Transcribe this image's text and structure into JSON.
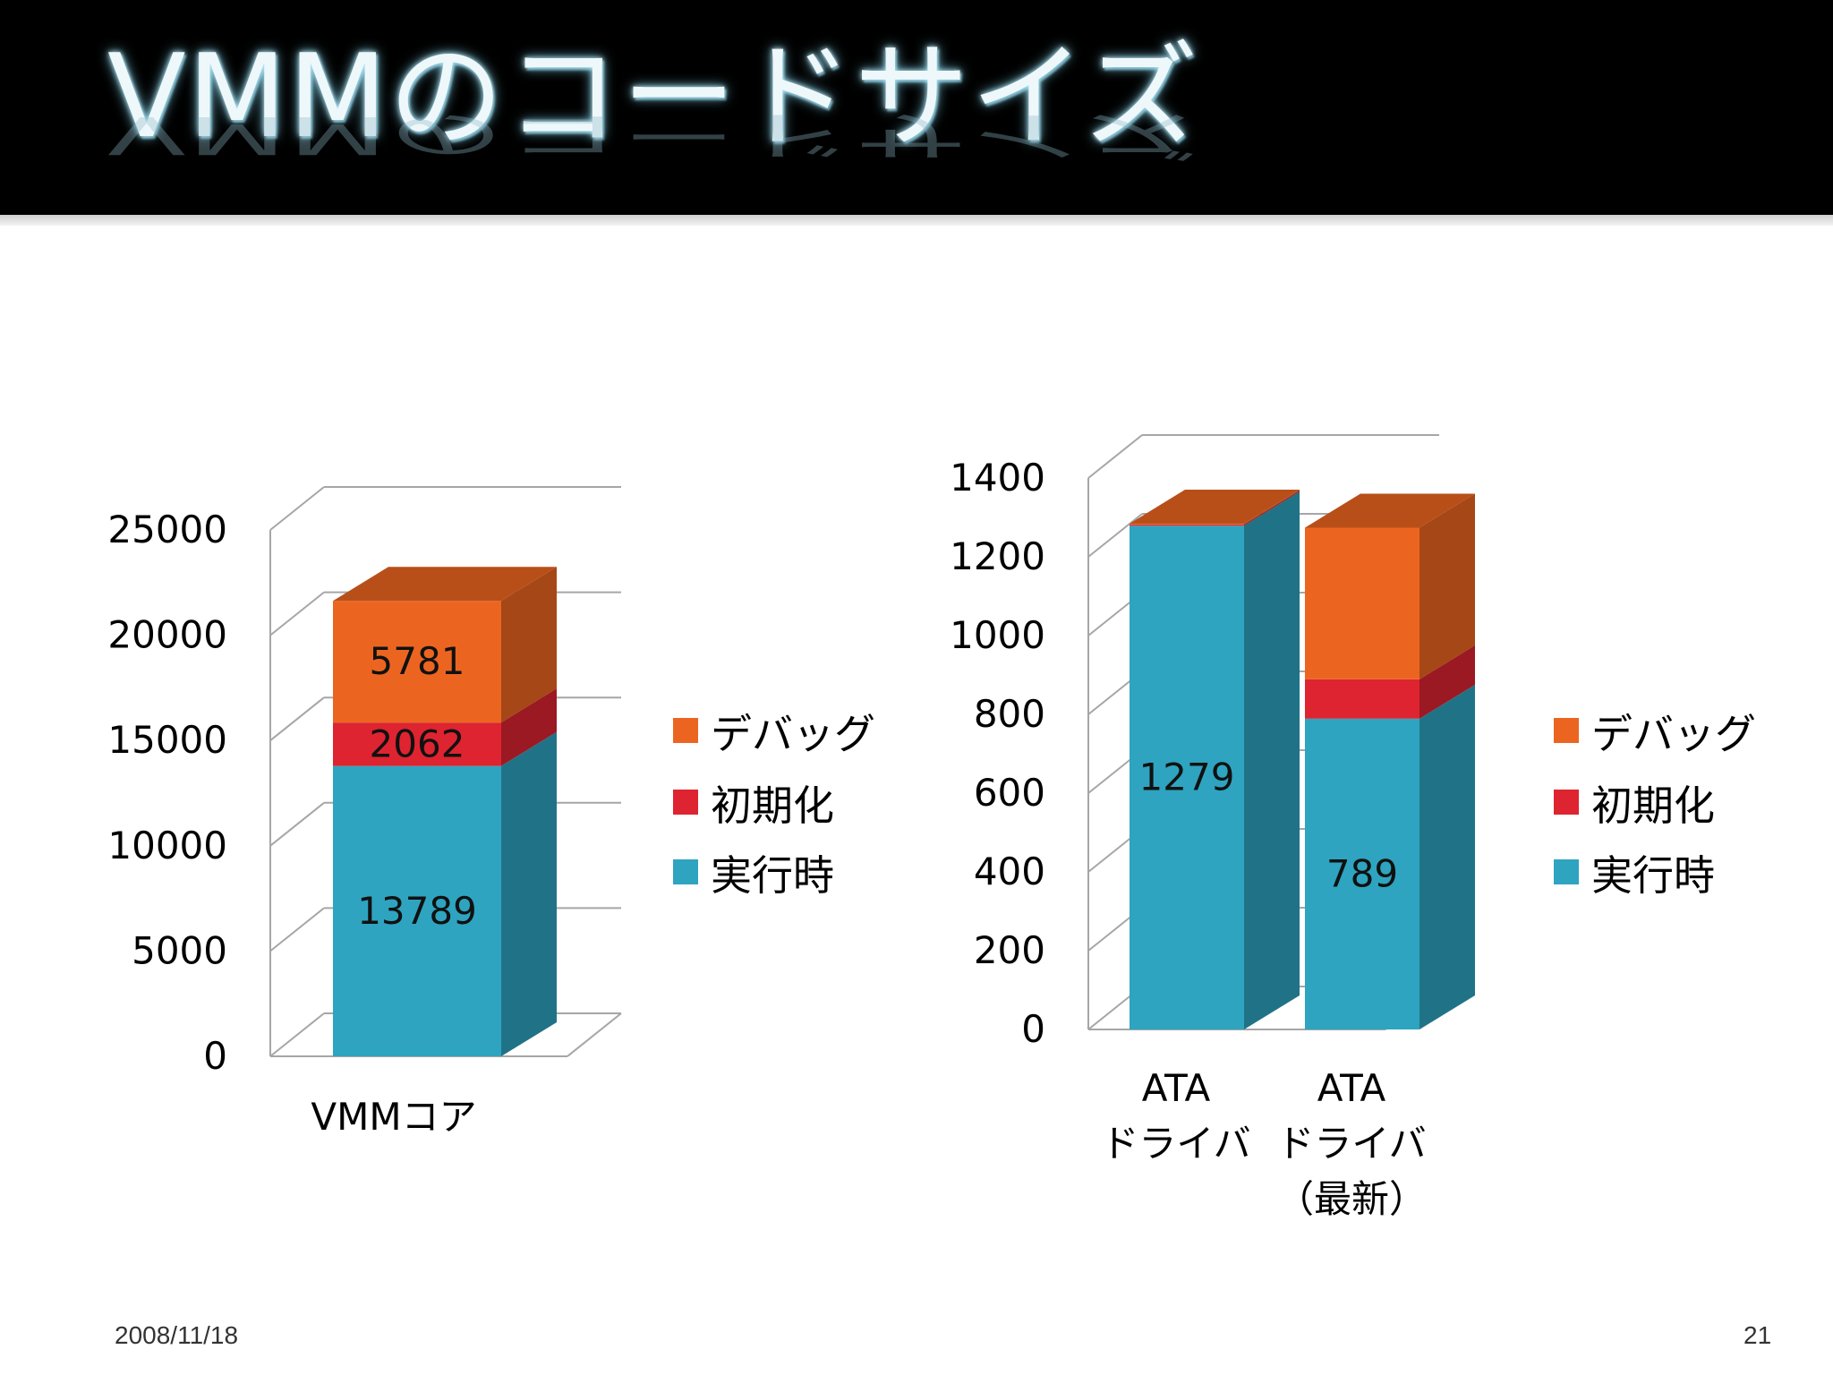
{
  "slide": {
    "title": "VMMのコードサイズ",
    "date": "2008/11/18",
    "page_number": "21"
  },
  "colors": {
    "runtime": "#2ea4c0",
    "init": "#de2430",
    "debug": "#ec6520",
    "gridline": "#a6a6a6"
  },
  "chart_data": [
    {
      "type": "bar",
      "stacked": true,
      "three_d": true,
      "categories": [
        [
          "VMMコア"
        ]
      ],
      "series": [
        {
          "name": "実行時",
          "values": [
            13789
          ],
          "labels": [
            "13789"
          ],
          "color": "#2ea4c0"
        },
        {
          "name": "初期化",
          "values": [
            2062
          ],
          "labels": [
            "2062"
          ],
          "color": "#de2430"
        },
        {
          "name": "デバッグ",
          "values": [
            5781
          ],
          "labels": [
            "5781"
          ],
          "color": "#ec6520"
        }
      ],
      "ylim": [
        0,
        25000
      ],
      "yticks": [
        "0",
        "5000",
        "10000",
        "15000",
        "20000",
        "25000"
      ],
      "legend": [
        "デバッグ",
        "初期化",
        "実行時"
      ],
      "legend_position": "right",
      "grid": true
    },
    {
      "type": "bar",
      "stacked": true,
      "three_d": true,
      "categories": [
        [
          "ATA",
          "ドライバ"
        ],
        [
          "ATA",
          "ドライバ",
          "（最新）"
        ]
      ],
      "series": [
        {
          "name": "実行時",
          "values": [
            1279,
            789
          ],
          "labels": [
            "1279",
            "789"
          ],
          "color": "#2ea4c0"
        },
        {
          "name": "初期化",
          "values": [
            3,
            100
          ],
          "labels": [
            "",
            ""
          ],
          "color": "#de2430"
        },
        {
          "name": "デバッグ",
          "values": [
            2,
            385
          ],
          "labels": [
            "",
            ""
          ],
          "color": "#ec6520"
        }
      ],
      "ylim": [
        0,
        1400
      ],
      "yticks": [
        "0",
        "200",
        "400",
        "600",
        "800",
        "1000",
        "1200",
        "1400"
      ],
      "legend": [
        "デバッグ",
        "初期化",
        "実行時"
      ],
      "legend_position": "right",
      "grid": true
    }
  ]
}
